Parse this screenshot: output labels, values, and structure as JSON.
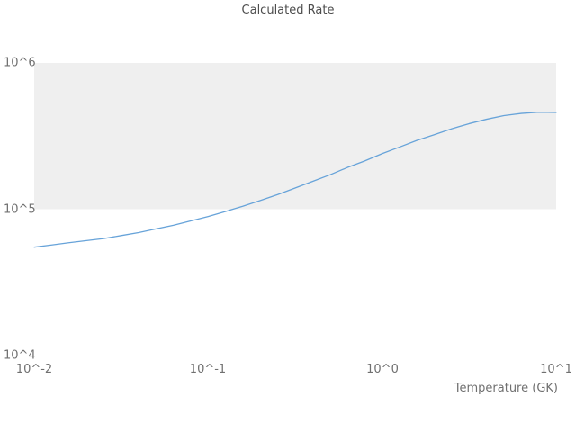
{
  "title": "Calculated Rate",
  "axes": {
    "x_label": "Temperature (GK)",
    "y_tick_labels": [
      "10^6",
      "10^5",
      "10^4"
    ],
    "x_tick_labels": [
      "10^-2",
      "10^-1",
      "10^0",
      "10^1"
    ]
  },
  "colors": {
    "line": "#67a3d9",
    "band": "#efefef",
    "text": "#707070",
    "title_text": "#4d4d4d"
  },
  "chart_data": {
    "type": "line",
    "title": "Calculated Rate",
    "xlabel": "Temperature (GK)",
    "ylabel": "",
    "x_scale": "log",
    "y_scale": "log",
    "xlim": [
      0.01,
      10
    ],
    "ylim": [
      10000,
      1000000
    ],
    "legend": "none",
    "grid": "off",
    "shaded_band": {
      "y_from": 100000,
      "y_to": 1000000,
      "color": "#efefef"
    },
    "series": [
      {
        "name": "Calculated Rate",
        "x": [
          0.01,
          0.0126,
          0.0158,
          0.02,
          0.0251,
          0.0316,
          0.0398,
          0.0501,
          0.0631,
          0.0794,
          0.1,
          0.126,
          0.158,
          0.2,
          0.251,
          0.316,
          0.398,
          0.501,
          0.631,
          0.794,
          1.0,
          1.26,
          1.58,
          2.0,
          2.51,
          3.16,
          3.98,
          5.01,
          6.31,
          7.94,
          10.0
        ],
        "y": [
          55000,
          56900,
          59000,
          61000,
          63000,
          66000,
          69200,
          73300,
          77600,
          83200,
          89100,
          96600,
          104700,
          114800,
          125900,
          139600,
          154900,
          171800,
          192800,
          213800,
          239900,
          266100,
          295100,
          323600,
          354800,
          384600,
          412100,
          436500,
          451900,
          460200,
          459200
        ]
      }
    ]
  },
  "layout_note": "log-log line chart, upper decade band shaded light gray"
}
